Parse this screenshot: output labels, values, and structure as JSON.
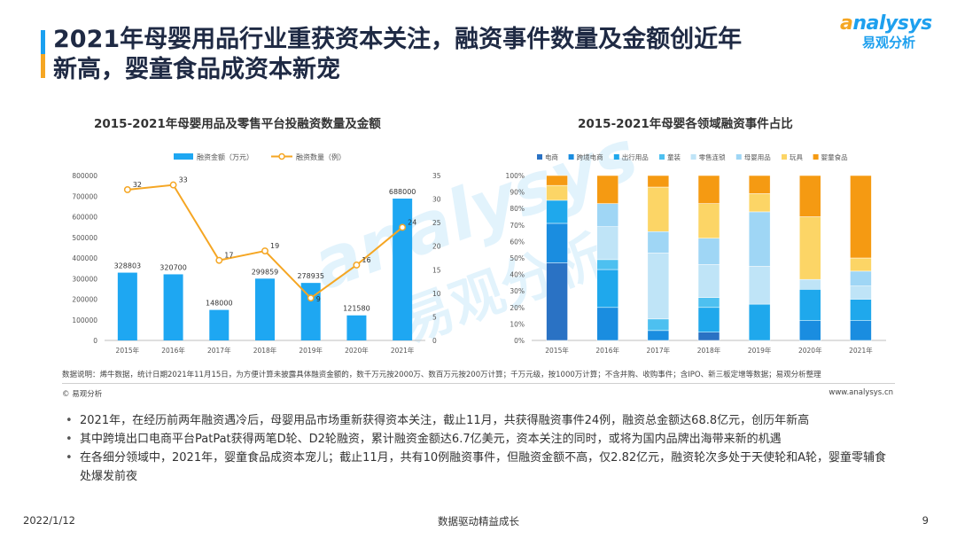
{
  "slide": {
    "title_line1": "2021年母婴用品行业重获资本关注，融资事件数量及金额创近年",
    "title_line2": "新高，婴童食品成资本新宠",
    "logo_en_a": "a",
    "logo_en_rest": "nalysys",
    "logo_cn": "易观分析",
    "note": "数据说明：烯牛数据，统计日期2021年11月15日，为方便计算未披露具体融资金额的，数千万元按2000万、数百万元按200万计算；千万元级，按1000万计算；不含并购、收购事件；含IPO、新三板定增等数据；易观分析整理",
    "copyright": "© 易观分析",
    "site": "www.analysys.cn",
    "bullets": [
      "2021年，在经历前两年融资遇冷后，母婴用品市场重新获得资本关注，截止11月，共获得融资事件24例，融资总金额达68.8亿元，创历年新高",
      "其中跨境出口电商平台PatPat获得两笔D轮、D2轮融资，累计融资金额达6.7亿美元，资本关注的同时，或将为国内品牌出海带来新的机遇",
      "在各细分领域中，2021年，婴童食品成资本宠儿；截止11月，共有10例融资事件，但融资金额不高，仅2.82亿元，融资轮次多处于天使轮和A轮，婴童零辅食处爆发前夜"
    ],
    "footer_date": "2022/1/12",
    "footer_center": "数据驱动精益成长",
    "page_number": "9",
    "watermark_en": "analysys",
    "watermark_cn": "易观分析"
  },
  "chart_data": [
    {
      "type": "bar",
      "title": "2015-2021年母婴用品及零售平台投融资数量及金额",
      "categories": [
        "2015年",
        "2016年",
        "2017年",
        "2018年",
        "2019年",
        "2020年",
        "2021年"
      ],
      "series": [
        {
          "name": "融资金额（万元）",
          "type": "bar",
          "axis": "left",
          "color": "#1ea7f2",
          "values": [
            328803,
            320700,
            148000,
            299859,
            278935,
            121580,
            688000
          ]
        },
        {
          "name": "融资数量（例）",
          "type": "line",
          "axis": "right",
          "color": "#f5a623",
          "values": [
            32,
            33,
            17,
            19,
            9,
            16,
            24
          ]
        }
      ],
      "bar_labels": [
        "328803",
        "320700",
        "148000",
        "299859",
        "278935",
        "121580",
        "688000"
      ],
      "line_labels": [
        "32",
        "33",
        "17",
        "19",
        "9",
        "16",
        "24"
      ],
      "ylim": [
        0,
        800000
      ],
      "yticks": [
        "0",
        "100000",
        "200000",
        "300000",
        "400000",
        "500000",
        "600000",
        "700000",
        "800000"
      ],
      "y2lim": [
        0,
        35
      ],
      "y2ticks": [
        "0",
        "5",
        "10",
        "15",
        "20",
        "25",
        "30",
        "35"
      ],
      "legend": "top"
    },
    {
      "type": "bar",
      "stacked": "percent",
      "title": "2015-2021年母婴各领域融资事件占比",
      "categories": [
        "2015年",
        "2016年",
        "2017年",
        "2018年",
        "2019年",
        "2020年",
        "2021年"
      ],
      "series": [
        {
          "name": "电商",
          "color": "#2a72c4",
          "values": [
            47,
            0,
            0,
            5,
            0,
            0,
            0
          ]
        },
        {
          "name": "跨境电商",
          "color": "#1a8de0",
          "values": [
            24,
            20,
            6,
            0,
            0,
            12,
            12
          ]
        },
        {
          "name": "出行用品",
          "color": "#1fa8ec",
          "values": [
            14,
            23,
            0,
            15,
            22,
            19,
            13
          ]
        },
        {
          "name": "童装",
          "color": "#4dc0f0",
          "values": [
            0,
            6,
            7,
            6,
            0,
            0,
            0
          ]
        },
        {
          "name": "零售连锁",
          "color": "#bfe4f7",
          "values": [
            0,
            20,
            40,
            20,
            23,
            6,
            8
          ]
        },
        {
          "name": "母婴用品",
          "color": "#9fd6f5",
          "values": [
            0,
            14,
            13,
            16,
            33,
            0,
            9
          ]
        },
        {
          "name": "玩具",
          "color": "#fcd566",
          "values": [
            9,
            0,
            27,
            21,
            11,
            38,
            8
          ]
        },
        {
          "name": "婴童食品",
          "color": "#f59a12",
          "values": [
            6,
            17,
            7,
            17,
            11,
            25,
            50
          ]
        }
      ],
      "ylim": [
        0,
        100
      ],
      "yticks": [
        "0%",
        "10%",
        "20%",
        "30%",
        "40%",
        "50%",
        "60%",
        "70%",
        "80%",
        "90%",
        "100%"
      ],
      "legend": "top"
    }
  ]
}
